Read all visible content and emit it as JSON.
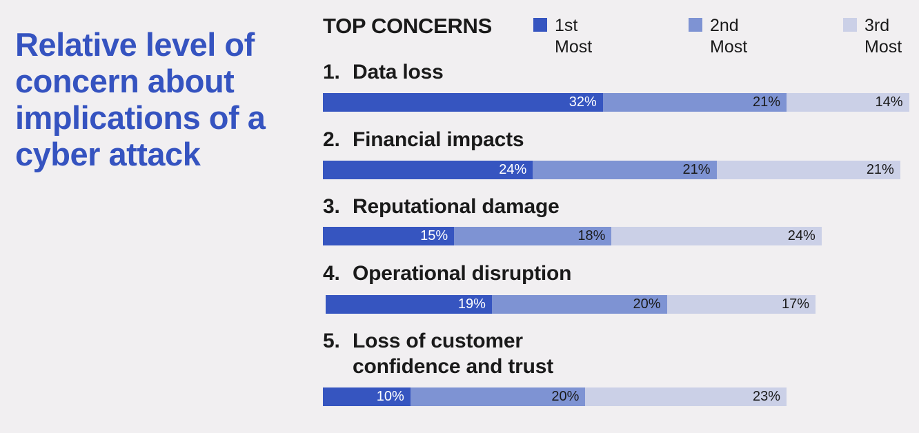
{
  "colors": {
    "first": "#3655c0",
    "second": "#7e93d3",
    "third": "#cbd0e7",
    "title": "#3553c0"
  },
  "title": "Relative level of concern about implications of a cyber attack",
  "top_concerns_label": "TOP CONCERNS",
  "legend": [
    {
      "label": "1st Most",
      "color": "#3655c0"
    },
    {
      "label": "2nd Most",
      "color": "#7e93d3"
    },
    {
      "label": "3rd Most",
      "color": "#cbd0e7"
    }
  ],
  "chart_data": {
    "type": "bar",
    "orientation": "horizontal",
    "stacked": true,
    "categories": [
      "Data loss",
      "Financial impacts",
      "Reputational damage",
      "Operational disruption",
      "Loss of customer confidence and trust"
    ],
    "ranks": [
      "1.",
      "2.",
      "3.",
      "4.",
      "5."
    ],
    "series": [
      {
        "name": "1st Most",
        "values": [
          32,
          24,
          15,
          19,
          10
        ]
      },
      {
        "name": "2nd Most",
        "values": [
          21,
          21,
          18,
          20,
          20
        ]
      },
      {
        "name": "3rd Most",
        "values": [
          14,
          21,
          24,
          17,
          23
        ]
      }
    ],
    "value_labels": [
      [
        "32%",
        "21%",
        "14%"
      ],
      [
        "24%",
        "21%",
        "21%"
      ],
      [
        "15%",
        "18%",
        "24%"
      ],
      [
        "19%",
        "20%",
        "17%"
      ],
      [
        "10%",
        "20%",
        "23%"
      ]
    ],
    "unit": "%"
  }
}
